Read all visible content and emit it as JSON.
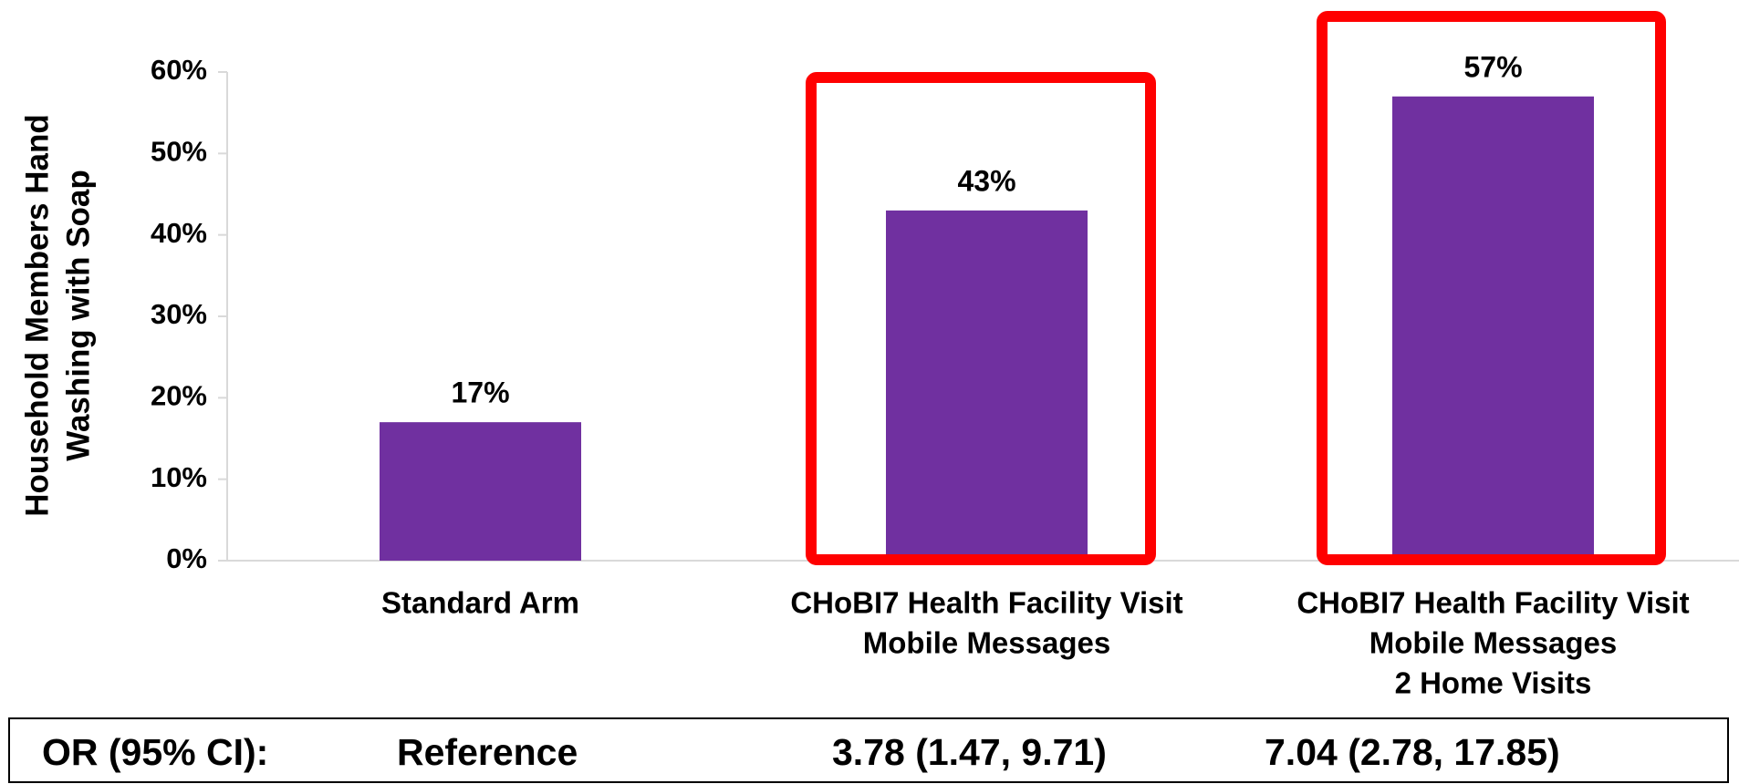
{
  "chart_data": {
    "type": "bar",
    "ylabel": [
      "Household  Members Hand",
      "Washing with Soap"
    ],
    "categories": [
      [
        "Standard Arm"
      ],
      [
        "CHoBI7 Health Facility Visit",
        "Mobile Messages"
      ],
      [
        "CHoBI7 Health Facility Visit",
        "Mobile Messages",
        "2 Home Visits"
      ]
    ],
    "values": [
      17,
      43,
      57
    ],
    "value_labels": [
      "17%",
      "43%",
      "57%"
    ],
    "color": "#7030a0",
    "ylim": [
      0,
      60
    ],
    "yticks": [
      {
        "value": 0,
        "label": "0%"
      },
      {
        "value": 10,
        "label": "10%"
      },
      {
        "value": 20,
        "label": "20%"
      },
      {
        "value": 30,
        "label": "30%"
      },
      {
        "value": 40,
        "label": "40%"
      },
      {
        "value": 50,
        "label": "50%"
      },
      {
        "value": 60,
        "label": "60%"
      }
    ],
    "odds_ratios": {
      "label": "OR (95% CI):",
      "values": [
        "Reference",
        "3.78 (1.47, 9.71)",
        "7.04 (2.78, 17.85)"
      ]
    }
  }
}
